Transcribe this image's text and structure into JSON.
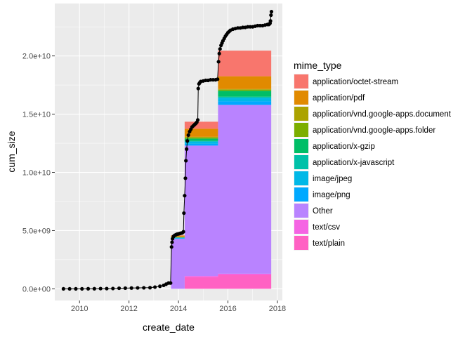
{
  "chart_data": {
    "type": "area",
    "xlabel": "create_date",
    "ylabel": "cum_size",
    "xlim": [
      2009.0,
      2018.2
    ],
    "ylim": [
      -1000000000.0,
      24500000000.0
    ],
    "x_ticks": [
      2010,
      2012,
      2014,
      2016,
      2018
    ],
    "x_tick_labels": [
      "2010",
      "2012",
      "2014",
      "2016",
      "2018"
    ],
    "y_ticks": [
      0,
      5000000000.0,
      10000000000.0,
      15000000000.0,
      20000000000.0
    ],
    "y_tick_labels": [
      "0.0e+00",
      "5.0e+09",
      "1.0e+10",
      "1.5e+10",
      "2.0e+10"
    ],
    "grid": true,
    "background": "#ebebeb",
    "legend_title": "mime_type",
    "legend_position": "right",
    "x": [
      2013.7,
      2014.25,
      2015.6,
      2017.75
    ],
    "series": [
      {
        "name": "text/plain",
        "color": "#FF61C3",
        "values": [
          0,
          1000000000.0,
          1200000000.0,
          1300000000.0
        ]
      },
      {
        "name": "text/csv",
        "color": "#F564E3",
        "values": [
          0,
          100000000.0,
          100000000.0,
          100000000.0
        ]
      },
      {
        "name": "Other",
        "color": "#B983FF",
        "values": [
          4300000000.0,
          11200000000.0,
          14500000000.0,
          15900000000.0
        ]
      },
      {
        "name": "image/png",
        "color": "#00A9FF",
        "values": [
          50000000.0,
          150000000.0,
          300000000.0,
          400000000.0
        ]
      },
      {
        "name": "image/jpeg",
        "color": "#00B8E7",
        "values": [
          50000000.0,
          200000000.0,
          300000000.0,
          300000000.0
        ]
      },
      {
        "name": "application/x-javascript",
        "color": "#00C1A9",
        "values": [
          0,
          50000000.0,
          100000000.0,
          100000000.0
        ]
      },
      {
        "name": "application/x-gzip",
        "color": "#00BE67",
        "values": [
          0,
          200000000.0,
          500000000.0,
          600000000.0
        ]
      },
      {
        "name": "application/vnd.google-apps.folder",
        "color": "#7CAE00",
        "values": [
          50000000.0,
          100000000.0,
          100000000.0,
          100000000.0
        ]
      },
      {
        "name": "application/vnd.google-apps.document",
        "color": "#ABA300",
        "values": [
          20000000.0,
          50000000.0,
          50000000.0,
          50000000.0
        ]
      },
      {
        "name": "application/pdf",
        "color": "#E18A00",
        "values": [
          100000000.0,
          700000000.0,
          1100000000.0,
          1000000000.0
        ]
      },
      {
        "name": "application/octet-stream",
        "color": "#F8766D",
        "values": [
          30000000.0,
          600000000.0,
          2200000000.0,
          2750000000.0
        ]
      }
    ],
    "cumulative_points": {
      "name": "cum_size",
      "color": "#000000",
      "x": [
        2009.35,
        2009.6,
        2009.85,
        2010.1,
        2010.35,
        2010.6,
        2010.85,
        2011.1,
        2011.35,
        2011.6,
        2011.85,
        2012.1,
        2012.35,
        2012.6,
        2012.85,
        2013.05,
        2013.25,
        2013.4,
        2013.5,
        2013.6,
        2013.68,
        2013.72,
        2013.74,
        2013.76,
        2013.8,
        2013.85,
        2013.9,
        2013.95,
        2014.0,
        2014.05,
        2014.1,
        2014.15,
        2014.2,
        2014.22,
        2014.25,
        2014.28,
        2014.3,
        2014.33,
        2014.36,
        2014.4,
        2014.45,
        2014.5,
        2014.55,
        2014.6,
        2014.65,
        2014.7,
        2014.74,
        2014.78,
        2014.8,
        2014.83,
        2014.86,
        2014.9,
        2015.0,
        2015.1,
        2015.2,
        2015.3,
        2015.4,
        2015.5,
        2015.58,
        2015.62,
        2015.65,
        2015.68,
        2015.72,
        2015.76,
        2015.8,
        2015.85,
        2015.9,
        2015.95,
        2016.0,
        2016.05,
        2016.1,
        2016.2,
        2016.3,
        2016.4,
        2016.5,
        2016.6,
        2016.7,
        2016.8,
        2016.9,
        2017.0,
        2017.1,
        2017.2,
        2017.3,
        2017.4,
        2017.5,
        2017.6,
        2017.65,
        2017.68,
        2017.7,
        2017.72,
        2017.74,
        2017.76
      ],
      "y": [
        0,
        0,
        0,
        0,
        10000000.0,
        10000000.0,
        20000000.0,
        20000000.0,
        30000000.0,
        50000000.0,
        60000000.0,
        70000000.0,
        80000000.0,
        90000000.0,
        100000000.0,
        150000000.0,
        220000000.0,
        300000000.0,
        400000000.0,
        500000000.0,
        500000000.0,
        3600000000.0,
        4000000000.0,
        4300000000.0,
        4500000000.0,
        4600000000.0,
        4650000000.0,
        4700000000.0,
        4720000000.0,
        4750000000.0,
        4780000000.0,
        4800000000.0,
        4900000000.0,
        6500000000.0,
        8000000000.0,
        9500000000.0,
        11000000000.0,
        12000000000.0,
        12700000000.0,
        13200000000.0,
        13500000000.0,
        13700000000.0,
        13900000000.0,
        14000000000.0,
        14100000000.0,
        14200000000.0,
        14300000000.0,
        14500000000.0,
        17200000000.0,
        17600000000.0,
        17700000000.0,
        17800000000.0,
        17850000000.0,
        17900000000.0,
        17900000000.0,
        17950000000.0,
        17950000000.0,
        17950000000.0,
        18000000000.0,
        19500000000.0,
        20200000000.0,
        20600000000.0,
        20900000000.0,
        21100000000.0,
        21300000000.0,
        21500000000.0,
        21700000000.0,
        21850000000.0,
        22000000000.0,
        22100000000.0,
        22200000000.0,
        22300000000.0,
        22350000000.0,
        22400000000.0,
        22400000000.0,
        22450000000.0,
        22450000000.0,
        22500000000.0,
        22500000000.0,
        22500000000.0,
        22550000000.0,
        22600000000.0,
        22600000000.0,
        22600000000.0,
        22650000000.0,
        22700000000.0,
        22700000000.0,
        22750000000.0,
        22800000000.0,
        23000000000.0,
        23500000000.0,
        23800000000.0
      ]
    }
  }
}
